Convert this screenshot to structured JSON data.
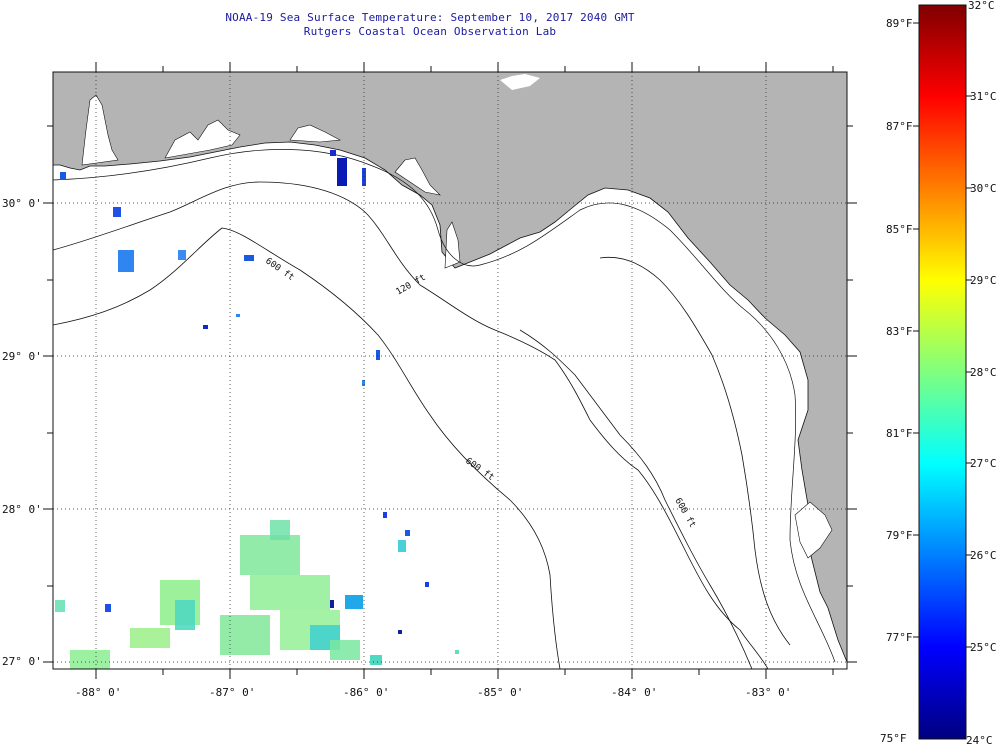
{
  "header": {
    "title": "NOAA-19 Sea Surface Temperature:  September 10, 2017 2040 GMT",
    "subtitle": "Rutgers Coastal Ocean Observation Lab"
  },
  "map": {
    "lon_range": [
      -88.35,
      -82.6
    ],
    "lat_range": [
      26.95,
      30.85
    ],
    "lat_labels": [
      "30° 0'",
      "29° 0'",
      "28° 0'",
      "27° 0'"
    ],
    "lon_labels": [
      "-88° 0'",
      "-87° 0'",
      "-86° 0'",
      "-85° 0'",
      "-84° 0'",
      "-83° 0'"
    ],
    "contour_labels": [
      "120 ft",
      "600 ft",
      "600 ft",
      "600 ft"
    ],
    "land_color": "#b4b4b4",
    "water_color": "#ffffff",
    "grid": "dotted"
  },
  "colorbar": {
    "celsius_labels": [
      "32°C",
      "31°C",
      "30°C",
      "29°C",
      "28°C",
      "27°C",
      "26°C",
      "25°C",
      "24°C"
    ],
    "fahrenheit_labels": [
      "89°F",
      "87°F",
      "85°F",
      "83°F",
      "81°F",
      "79°F",
      "77°F",
      "75°F"
    ],
    "range_c": [
      24,
      32
    ],
    "colors": [
      "#00007f",
      "#0000ff",
      "#007fff",
      "#00ffff",
      "#7fff7f",
      "#ffff00",
      "#ff7f00",
      "#ff0000",
      "#7f0000"
    ]
  }
}
